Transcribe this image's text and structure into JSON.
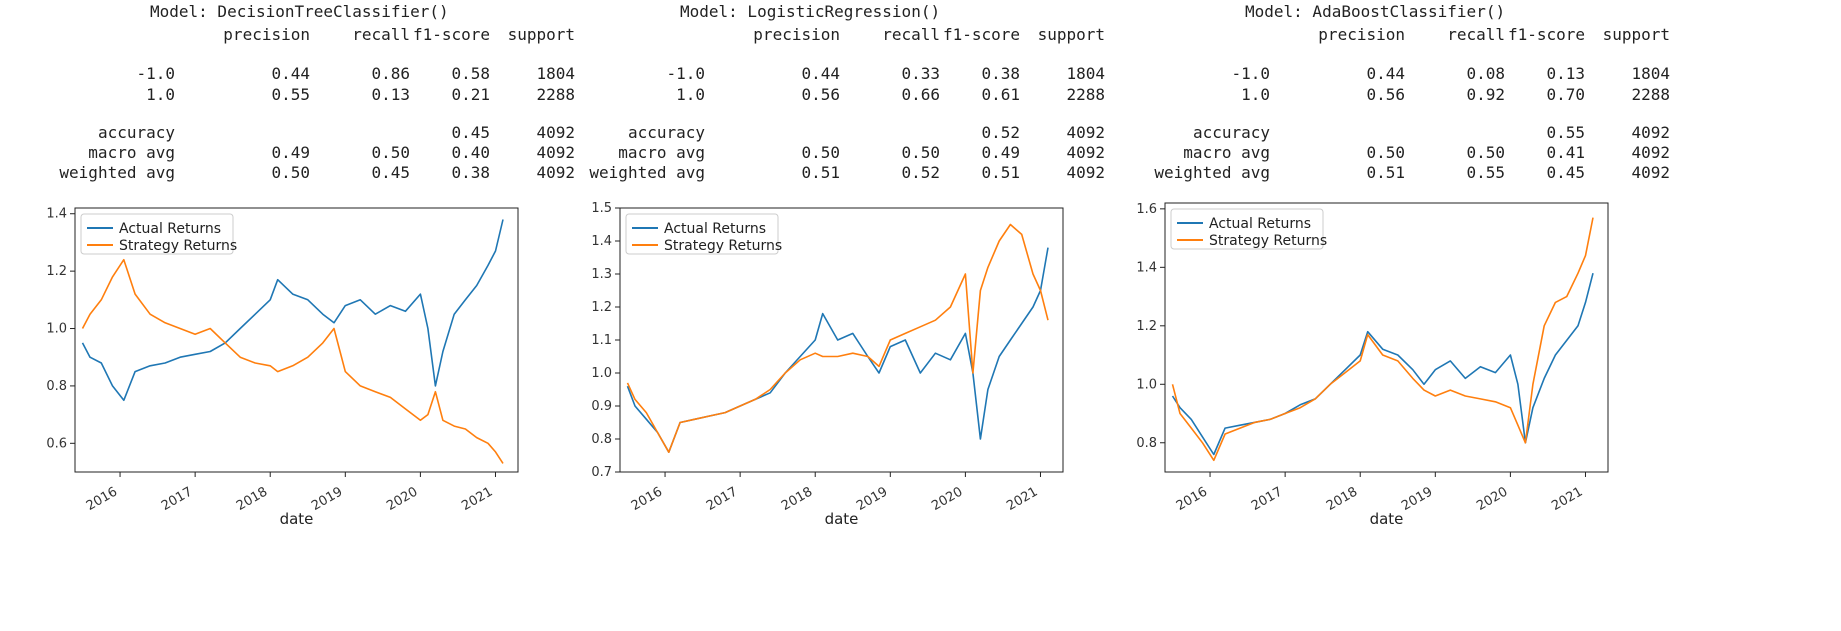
{
  "colors": {
    "actual": "#1f77b4",
    "strategy": "#ff7f0e"
  },
  "panels": [
    {
      "model_label": "Model: DecisionTreeClassifier()",
      "report": {
        "header": [
          "precision",
          "recall",
          "f1-score",
          "support"
        ],
        "rows": [
          {
            "label": "-1.0",
            "precision": "0.44",
            "recall": "0.86",
            "f1": "0.58",
            "support": "1804"
          },
          {
            "label": "1.0",
            "precision": "0.55",
            "recall": "0.13",
            "f1": "0.21",
            "support": "2288"
          },
          {
            "label": "accuracy",
            "precision": "",
            "recall": "",
            "f1": "0.45",
            "support": "4092"
          },
          {
            "label": "macro avg",
            "precision": "0.49",
            "recall": "0.50",
            "f1": "0.40",
            "support": "4092"
          },
          {
            "label": "weighted avg",
            "precision": "0.50",
            "recall": "0.45",
            "f1": "0.38",
            "support": "4092"
          }
        ]
      }
    },
    {
      "model_label": "Model: LogisticRegression()",
      "report": {
        "header": [
          "precision",
          "recall",
          "f1-score",
          "support"
        ],
        "rows": [
          {
            "label": "-1.0",
            "precision": "0.44",
            "recall": "0.33",
            "f1": "0.38",
            "support": "1804"
          },
          {
            "label": "1.0",
            "precision": "0.56",
            "recall": "0.66",
            "f1": "0.61",
            "support": "2288"
          },
          {
            "label": "accuracy",
            "precision": "",
            "recall": "",
            "f1": "0.52",
            "support": "4092"
          },
          {
            "label": "macro avg",
            "precision": "0.50",
            "recall": "0.50",
            "f1": "0.49",
            "support": "4092"
          },
          {
            "label": "weighted avg",
            "precision": "0.51",
            "recall": "0.52",
            "f1": "0.51",
            "support": "4092"
          }
        ]
      }
    },
    {
      "model_label": "Model: AdaBoostClassifier()",
      "report": {
        "header": [
          "precision",
          "recall",
          "f1-score",
          "support"
        ],
        "rows": [
          {
            "label": "-1.0",
            "precision": "0.44",
            "recall": "0.08",
            "f1": "0.13",
            "support": "1804"
          },
          {
            "label": "1.0",
            "precision": "0.56",
            "recall": "0.92",
            "f1": "0.70",
            "support": "2288"
          },
          {
            "label": "accuracy",
            "precision": "",
            "recall": "",
            "f1": "0.55",
            "support": "4092"
          },
          {
            "label": "macro avg",
            "precision": "0.50",
            "recall": "0.50",
            "f1": "0.41",
            "support": "4092"
          },
          {
            "label": "weighted avg",
            "precision": "0.51",
            "recall": "0.55",
            "f1": "0.45",
            "support": "4092"
          }
        ]
      }
    }
  ],
  "chart_data": [
    {
      "type": "line",
      "xlabel": "date",
      "ylabel": "",
      "xlim": [
        2015.4,
        2021.3
      ],
      "ylim": [
        0.5,
        1.42
      ],
      "xticks": [
        "2016",
        "2017",
        "2018",
        "2019",
        "2020",
        "2021"
      ],
      "yticks": [
        "0.6",
        "0.8",
        "1.0",
        "1.2",
        "1.4"
      ],
      "legend": "top-left",
      "series": [
        {
          "name": "Actual Returns",
          "x": [
            2015.5,
            2015.6,
            2015.75,
            2015.9,
            2016.05,
            2016.2,
            2016.4,
            2016.6,
            2016.8,
            2017.0,
            2017.2,
            2017.4,
            2017.6,
            2017.8,
            2018.0,
            2018.1,
            2018.3,
            2018.5,
            2018.7,
            2018.85,
            2019.0,
            2019.2,
            2019.4,
            2019.6,
            2019.8,
            2020.0,
            2020.1,
            2020.2,
            2020.3,
            2020.45,
            2020.6,
            2020.75,
            2020.9,
            2021.0,
            2021.1
          ],
          "y": [
            0.95,
            0.9,
            0.88,
            0.8,
            0.75,
            0.85,
            0.87,
            0.88,
            0.9,
            0.91,
            0.92,
            0.95,
            1.0,
            1.05,
            1.1,
            1.17,
            1.12,
            1.1,
            1.05,
            1.02,
            1.08,
            1.1,
            1.05,
            1.08,
            1.06,
            1.12,
            1.0,
            0.8,
            0.92,
            1.05,
            1.1,
            1.15,
            1.22,
            1.27,
            1.38
          ]
        },
        {
          "name": "Strategy Returns",
          "x": [
            2015.5,
            2015.6,
            2015.75,
            2015.9,
            2016.05,
            2016.2,
            2016.4,
            2016.6,
            2016.8,
            2017.0,
            2017.2,
            2017.4,
            2017.6,
            2017.8,
            2018.0,
            2018.1,
            2018.3,
            2018.5,
            2018.7,
            2018.85,
            2019.0,
            2019.2,
            2019.4,
            2019.6,
            2019.8,
            2020.0,
            2020.1,
            2020.2,
            2020.3,
            2020.45,
            2020.6,
            2020.75,
            2020.9,
            2021.0,
            2021.1
          ],
          "y": [
            1.0,
            1.05,
            1.1,
            1.18,
            1.24,
            1.12,
            1.05,
            1.02,
            1.0,
            0.98,
            1.0,
            0.95,
            0.9,
            0.88,
            0.87,
            0.85,
            0.87,
            0.9,
            0.95,
            1.0,
            0.85,
            0.8,
            0.78,
            0.76,
            0.72,
            0.68,
            0.7,
            0.78,
            0.68,
            0.66,
            0.65,
            0.62,
            0.6,
            0.57,
            0.53
          ]
        }
      ]
    },
    {
      "type": "line",
      "xlabel": "date",
      "ylabel": "",
      "xlim": [
        2015.4,
        2021.3
      ],
      "ylim": [
        0.7,
        1.5
      ],
      "xticks": [
        "2016",
        "2017",
        "2018",
        "2019",
        "2020",
        "2021"
      ],
      "yticks": [
        "0.7",
        "0.8",
        "0.9",
        "1.0",
        "1.1",
        "1.2",
        "1.3",
        "1.4",
        "1.5"
      ],
      "legend": "top-left",
      "series": [
        {
          "name": "Actual Returns",
          "x": [
            2015.5,
            2015.6,
            2015.75,
            2015.9,
            2016.05,
            2016.2,
            2016.4,
            2016.6,
            2016.8,
            2017.0,
            2017.2,
            2017.4,
            2017.6,
            2017.8,
            2018.0,
            2018.1,
            2018.3,
            2018.5,
            2018.7,
            2018.85,
            2019.0,
            2019.2,
            2019.4,
            2019.6,
            2019.8,
            2020.0,
            2020.1,
            2020.2,
            2020.3,
            2020.45,
            2020.6,
            2020.75,
            2020.9,
            2021.0,
            2021.1
          ],
          "y": [
            0.96,
            0.9,
            0.86,
            0.82,
            0.76,
            0.85,
            0.86,
            0.87,
            0.88,
            0.9,
            0.92,
            0.94,
            1.0,
            1.05,
            1.1,
            1.18,
            1.1,
            1.12,
            1.05,
            1.0,
            1.08,
            1.1,
            1.0,
            1.06,
            1.04,
            1.12,
            1.0,
            0.8,
            0.95,
            1.05,
            1.1,
            1.15,
            1.2,
            1.25,
            1.38
          ]
        },
        {
          "name": "Strategy Returns",
          "x": [
            2015.5,
            2015.6,
            2015.75,
            2015.9,
            2016.05,
            2016.2,
            2016.4,
            2016.6,
            2016.8,
            2017.0,
            2017.2,
            2017.4,
            2017.6,
            2017.8,
            2018.0,
            2018.1,
            2018.3,
            2018.5,
            2018.7,
            2018.85,
            2019.0,
            2019.2,
            2019.4,
            2019.6,
            2019.8,
            2020.0,
            2020.1,
            2020.2,
            2020.3,
            2020.45,
            2020.6,
            2020.75,
            2020.9,
            2021.0,
            2021.1
          ],
          "y": [
            0.97,
            0.92,
            0.88,
            0.82,
            0.76,
            0.85,
            0.86,
            0.87,
            0.88,
            0.9,
            0.92,
            0.95,
            1.0,
            1.04,
            1.06,
            1.05,
            1.05,
            1.06,
            1.05,
            1.02,
            1.1,
            1.12,
            1.14,
            1.16,
            1.2,
            1.3,
            1.0,
            1.25,
            1.32,
            1.4,
            1.45,
            1.42,
            1.3,
            1.25,
            1.16
          ]
        }
      ]
    },
    {
      "type": "line",
      "xlabel": "date",
      "ylabel": "",
      "xlim": [
        2015.4,
        2021.3
      ],
      "ylim": [
        0.7,
        1.62
      ],
      "xticks": [
        "2016",
        "2017",
        "2018",
        "2019",
        "2020",
        "2021"
      ],
      "yticks": [
        "0.8",
        "1.0",
        "1.2",
        "1.4",
        "1.6"
      ],
      "legend": "top-left",
      "series": [
        {
          "name": "Actual Returns",
          "x": [
            2015.5,
            2015.6,
            2015.75,
            2015.9,
            2016.05,
            2016.2,
            2016.4,
            2016.6,
            2016.8,
            2017.0,
            2017.2,
            2017.4,
            2017.6,
            2017.8,
            2018.0,
            2018.1,
            2018.3,
            2018.5,
            2018.7,
            2018.85,
            2019.0,
            2019.2,
            2019.4,
            2019.6,
            2019.8,
            2020.0,
            2020.1,
            2020.2,
            2020.3,
            2020.45,
            2020.6,
            2020.75,
            2020.9,
            2021.0,
            2021.1
          ],
          "y": [
            0.96,
            0.92,
            0.88,
            0.82,
            0.76,
            0.85,
            0.86,
            0.87,
            0.88,
            0.9,
            0.93,
            0.95,
            1.0,
            1.05,
            1.1,
            1.18,
            1.12,
            1.1,
            1.05,
            1.0,
            1.05,
            1.08,
            1.02,
            1.06,
            1.04,
            1.1,
            1.0,
            0.8,
            0.92,
            1.02,
            1.1,
            1.15,
            1.2,
            1.28,
            1.38
          ]
        },
        {
          "name": "Strategy Returns",
          "x": [
            2015.5,
            2015.6,
            2015.75,
            2015.9,
            2016.05,
            2016.2,
            2016.4,
            2016.6,
            2016.8,
            2017.0,
            2017.2,
            2017.4,
            2017.6,
            2017.8,
            2018.0,
            2018.1,
            2018.3,
            2018.5,
            2018.7,
            2018.85,
            2019.0,
            2019.2,
            2019.4,
            2019.6,
            2019.8,
            2020.0,
            2020.1,
            2020.2,
            2020.3,
            2020.45,
            2020.6,
            2020.75,
            2020.9,
            2021.0,
            2021.1
          ],
          "y": [
            1.0,
            0.9,
            0.85,
            0.8,
            0.74,
            0.83,
            0.85,
            0.87,
            0.88,
            0.9,
            0.92,
            0.95,
            1.0,
            1.04,
            1.08,
            1.17,
            1.1,
            1.08,
            1.02,
            0.98,
            0.96,
            0.98,
            0.96,
            0.95,
            0.94,
            0.92,
            0.86,
            0.8,
            1.0,
            1.2,
            1.28,
            1.3,
            1.38,
            1.44,
            1.57
          ]
        }
      ]
    }
  ]
}
